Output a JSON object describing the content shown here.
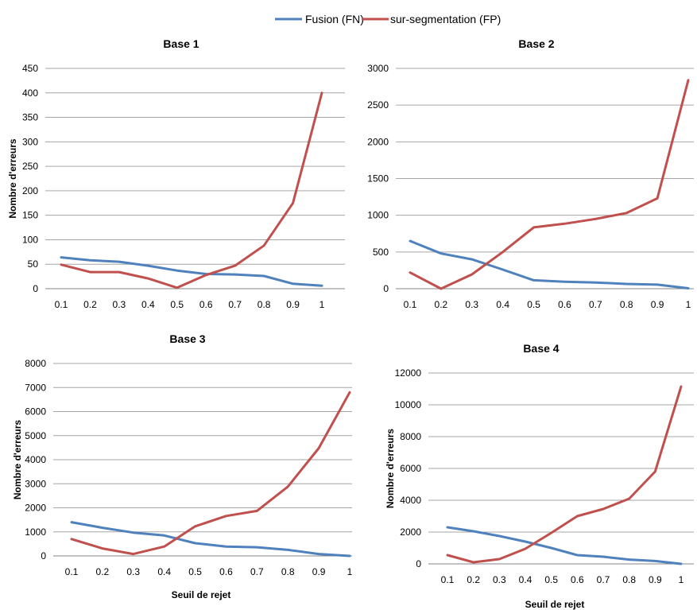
{
  "legend": {
    "items": [
      {
        "label": "Fusion (FN)",
        "color": "#4F81BD"
      },
      {
        "label": "sur-segmentation (FP)",
        "color": "#C0504D"
      }
    ]
  },
  "chart_data": [
    {
      "type": "line",
      "title": "Base 1",
      "xlabel": "",
      "ylabel": "Nombre d'erreurs",
      "x": [
        "0.1",
        "0.2",
        "0.3",
        "0.4",
        "0.5",
        "0.6",
        "0.7",
        "0.8",
        "0.9",
        "1"
      ],
      "ylim": [
        0,
        450
      ],
      "yticks": [
        "0",
        "50",
        "100",
        "150",
        "200",
        "250",
        "300",
        "350",
        "400",
        "450"
      ],
      "grid": true,
      "series": [
        {
          "name": "Fusion (FN)",
          "color": "#4F81BD",
          "values": [
            64,
            58,
            55,
            47,
            37,
            30,
            29,
            26,
            10,
            6
          ]
        },
        {
          "name": "sur-segmentation (FP)",
          "color": "#C0504D",
          "values": [
            49,
            34,
            34,
            21,
            2,
            28,
            47,
            88,
            175,
            400
          ]
        }
      ]
    },
    {
      "type": "line",
      "title": "Base 2",
      "xlabel": "",
      "ylabel": "",
      "x": [
        "0.1",
        "0.2",
        "0.3",
        "0.4",
        "0.5",
        "0.6",
        "0.7",
        "0.8",
        "0.9",
        "1"
      ],
      "ylim": [
        0,
        3000
      ],
      "yticks": [
        "0",
        "500",
        "1000",
        "1500",
        "2000",
        "2500",
        "3000"
      ],
      "grid": true,
      "series": [
        {
          "name": "Fusion (FN)",
          "color": "#4F81BD",
          "values": [
            650,
            480,
            400,
            260,
            115,
            95,
            85,
            65,
            55,
            5
          ]
        },
        {
          "name": "sur-segmentation (FP)",
          "color": "#C0504D",
          "values": [
            220,
            0,
            195,
            500,
            835,
            885,
            950,
            1030,
            1230,
            2840
          ]
        }
      ]
    },
    {
      "type": "line",
      "title": "Base 3",
      "xlabel": "Seuil de rejet",
      "ylabel": "Nombre d'erreurs",
      "x": [
        "0.1",
        "0.2",
        "0.3",
        "0.4",
        "0.5",
        "0.6",
        "0.7",
        "0.8",
        "0.9",
        "1"
      ],
      "ylim": [
        0,
        8000
      ],
      "yticks": [
        "0",
        "1000",
        "2000",
        "3000",
        "4000",
        "5000",
        "6000",
        "7000",
        "8000"
      ],
      "grid": true,
      "series": [
        {
          "name": "Fusion (FN)",
          "color": "#4F81BD",
          "values": [
            1400,
            1170,
            970,
            850,
            530,
            390,
            360,
            250,
            80,
            0
          ]
        },
        {
          "name": "sur-segmentation (FP)",
          "color": "#C0504D",
          "values": [
            700,
            310,
            80,
            390,
            1230,
            1660,
            1870,
            2880,
            4480,
            6800
          ]
        }
      ]
    },
    {
      "type": "line",
      "title": "Base 4",
      "xlabel": "Seuil de rejet",
      "ylabel": "Nombre d'erreurs",
      "x": [
        "0.1",
        "0.2",
        "0.3",
        "0.4",
        "0.5",
        "0.6",
        "0.7",
        "0.8",
        "0.9",
        "1"
      ],
      "ylim": [
        0,
        12000
      ],
      "yticks": [
        "0",
        "2000",
        "4000",
        "6000",
        "8000",
        "10000",
        "12000"
      ],
      "grid": true,
      "series": [
        {
          "name": "Fusion (FN)",
          "color": "#4F81BD",
          "values": [
            2300,
            2050,
            1750,
            1400,
            1000,
            550,
            450,
            270,
            180,
            0
          ]
        },
        {
          "name": "sur-segmentation (FP)",
          "color": "#C0504D",
          "values": [
            550,
            100,
            300,
            950,
            1950,
            3000,
            3450,
            4100,
            5800,
            11150
          ]
        }
      ]
    }
  ]
}
